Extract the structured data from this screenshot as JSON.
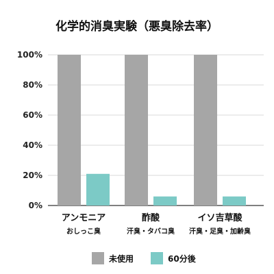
{
  "chart_data": {
    "type": "bar",
    "title": "化学的消臭実験（悪臭除去率）",
    "categories": [
      {
        "label": "アンモニア",
        "sublabel": "おしっこ臭"
      },
      {
        "label": "酢酸",
        "sublabel": "汗臭・タバコ臭"
      },
      {
        "label": "イソ吉草酸",
        "sublabel": "汗臭・足臭・加齢臭"
      }
    ],
    "series": [
      {
        "name": "未使用",
        "color": "#a6a6a6",
        "values": [
          100,
          100,
          100
        ]
      },
      {
        "name": "60分後",
        "color": "#7ccac6",
        "values": [
          21,
          6,
          6
        ]
      }
    ],
    "ylim": [
      0,
      100
    ],
    "yticks": [
      {
        "value": 0,
        "label": "0%"
      },
      {
        "value": 20,
        "label": "20%"
      },
      {
        "value": 40,
        "label": "40%"
      },
      {
        "value": 60,
        "label": "60%"
      },
      {
        "value": 80,
        "label": "80%"
      },
      {
        "value": 100,
        "label": "100%"
      }
    ],
    "grid": true,
    "legend_position": "bottom-center"
  }
}
